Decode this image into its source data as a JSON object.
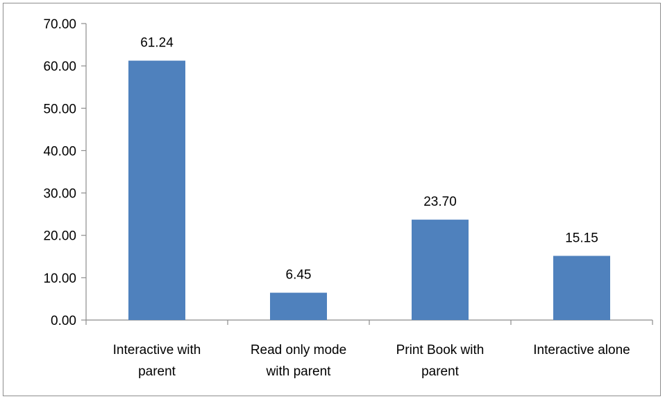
{
  "chart_data": {
    "type": "bar",
    "categories": [
      [
        "Interactive with",
        "parent"
      ],
      [
        "Read only mode",
        "with parent"
      ],
      [
        "Print Book with",
        "parent"
      ],
      [
        "Interactive alone"
      ]
    ],
    "values": [
      61.24,
      6.45,
      23.7,
      15.15
    ],
    "value_labels": [
      "61.24",
      "6.45",
      "23.70",
      "15.15"
    ],
    "y_ticks": [
      "0.00",
      "10.00",
      "20.00",
      "30.00",
      "40.00",
      "50.00",
      "60.00",
      "70.00"
    ],
    "ylim": [
      0,
      70
    ],
    "grid": false,
    "legend": "none",
    "bar_color": "#4f81bd",
    "axis_color": "#8c8c8c"
  }
}
